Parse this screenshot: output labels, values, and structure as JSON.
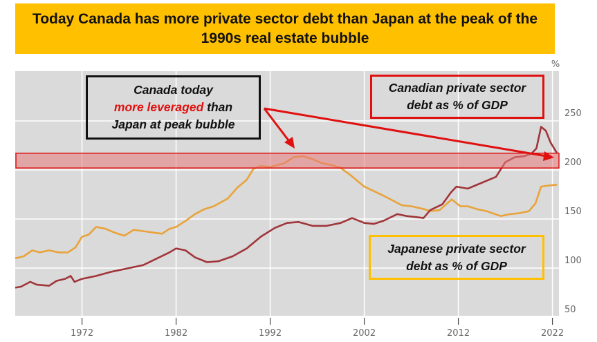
{
  "title": "Today Canada has more private sector debt than Japan at the peak of the 1990s real estate bubble",
  "annotations": {
    "leverage_box": {
      "line1": "Canada today",
      "line2_highlight": "more leveraged",
      "line2_rest": " than",
      "line3": "Japan at peak bubble"
    },
    "canada_label": {
      "line1": "Canadian private sector",
      "line2": "debt as % of GDP"
    },
    "japan_label": {
      "line1": "Japanese private sector",
      "line2": "debt as % of GDP"
    }
  },
  "colors": {
    "banner": "#FFC000",
    "canada": "#A0353A",
    "japan": "#E8A33A",
    "highlight_band": "#E87A7A",
    "arrow": "#E01010",
    "plot_bg": "#DADADA"
  },
  "chart_data": {
    "type": "line",
    "title": "Today Canada has more private sector debt than Japan at the peak of the 1990s real estate bubble",
    "xlabel": "",
    "ylabel": "%",
    "xlim": [
      1964.9,
      2022.7
    ],
    "ylim": [
      49,
      300
    ],
    "x_ticks": [
      1972,
      1982,
      1992,
      2002,
      2012,
      2022
    ],
    "x_tick_labels": [
      "1972",
      "1982",
      "1992",
      "2002",
      "2012",
      "2022"
    ],
    "y_ticks": [
      50,
      100,
      150,
      200,
      250
    ],
    "y_tick_labels": [
      "50",
      "100",
      "150",
      "200",
      "250"
    ],
    "y_unit_label": "%",
    "grid": true,
    "highlight_band": {
      "y_from": 202,
      "y_to": 215
    },
    "series": [
      {
        "name": "Canadian private sector debt as % of GDP",
        "points": [
          [
            1964.9,
            80
          ],
          [
            1965.5,
            81
          ],
          [
            1966.5,
            86
          ],
          [
            1967.2,
            83
          ],
          [
            1968.5,
            82
          ],
          [
            1969.3,
            87
          ],
          [
            1970.2,
            89
          ],
          [
            1970.8,
            92
          ],
          [
            1971.2,
            86
          ],
          [
            1972,
            89
          ],
          [
            1973.5,
            92
          ],
          [
            1975,
            96
          ],
          [
            1977,
            100
          ],
          [
            1978.5,
            103
          ],
          [
            1980,
            110
          ],
          [
            1981.3,
            116
          ],
          [
            1982,
            120
          ],
          [
            1983,
            118
          ],
          [
            1984,
            111
          ],
          [
            1985.3,
            106
          ],
          [
            1986.5,
            107
          ],
          [
            1988,
            112
          ],
          [
            1989.5,
            120
          ],
          [
            1991,
            132
          ],
          [
            1992.5,
            141
          ],
          [
            1993.8,
            146
          ],
          [
            1995,
            147
          ],
          [
            1996.5,
            143
          ],
          [
            1998,
            143
          ],
          [
            1999.5,
            146
          ],
          [
            2000.7,
            151
          ],
          [
            2002,
            146
          ],
          [
            2003,
            145
          ],
          [
            2004,
            148
          ],
          [
            2005.5,
            155
          ],
          [
            2006.5,
            153
          ],
          [
            2007.5,
            152
          ],
          [
            2008.3,
            151
          ],
          [
            2009,
            159
          ],
          [
            2010.3,
            165
          ],
          [
            2011.2,
            177
          ],
          [
            2011.8,
            183
          ],
          [
            2013,
            181
          ],
          [
            2014.5,
            187
          ],
          [
            2016,
            193
          ],
          [
            2017,
            208
          ],
          [
            2018,
            213
          ],
          [
            2019,
            214
          ],
          [
            2019.8,
            217
          ],
          [
            2020.3,
            222
          ],
          [
            2020.8,
            244
          ],
          [
            2021.3,
            240
          ],
          [
            2021.8,
            228
          ],
          [
            2022.5,
            217
          ]
        ]
      },
      {
        "name": "Japanese private sector debt as % of GDP",
        "points": [
          [
            1964.9,
            110
          ],
          [
            1965.8,
            112
          ],
          [
            1966.7,
            118
          ],
          [
            1967.5,
            116
          ],
          [
            1968.5,
            118
          ],
          [
            1969.5,
            116
          ],
          [
            1970.5,
            116
          ],
          [
            1971.3,
            121
          ],
          [
            1972,
            132
          ],
          [
            1972.7,
            134
          ],
          [
            1973.5,
            142
          ],
          [
            1974.5,
            140
          ],
          [
            1975.5,
            136
          ],
          [
            1976.5,
            133
          ],
          [
            1977.5,
            139
          ],
          [
            1979,
            137
          ],
          [
            1980.5,
            135
          ],
          [
            1981.3,
            140
          ],
          [
            1982,
            142
          ],
          [
            1983,
            148
          ],
          [
            1984,
            155
          ],
          [
            1985,
            160
          ],
          [
            1986,
            163
          ],
          [
            1987.5,
            171
          ],
          [
            1988.5,
            182
          ],
          [
            1989.5,
            190
          ],
          [
            1990.2,
            201
          ],
          [
            1991,
            204
          ],
          [
            1992,
            203
          ],
          [
            1993.5,
            207
          ],
          [
            1994.5,
            213
          ],
          [
            1995.5,
            214
          ],
          [
            1996.5,
            211
          ],
          [
            1997.5,
            207
          ],
          [
            1998.5,
            205
          ],
          [
            1999.5,
            202
          ],
          [
            2000.5,
            195
          ],
          [
            2002,
            183
          ],
          [
            2004,
            174
          ],
          [
            2006,
            164
          ],
          [
            2007,
            163
          ],
          [
            2008.4,
            160
          ],
          [
            2009,
            158
          ],
          [
            2010,
            159
          ],
          [
            2011.3,
            170
          ],
          [
            2012.2,
            163
          ],
          [
            2013,
            163
          ],
          [
            2014,
            160
          ],
          [
            2015,
            158
          ],
          [
            2016.5,
            153
          ],
          [
            2017.5,
            155
          ],
          [
            2018.5,
            156
          ],
          [
            2019.5,
            158
          ],
          [
            2020.2,
            166
          ],
          [
            2020.8,
            183
          ],
          [
            2021.5,
            184
          ],
          [
            2022.5,
            185
          ]
        ]
      }
    ]
  }
}
